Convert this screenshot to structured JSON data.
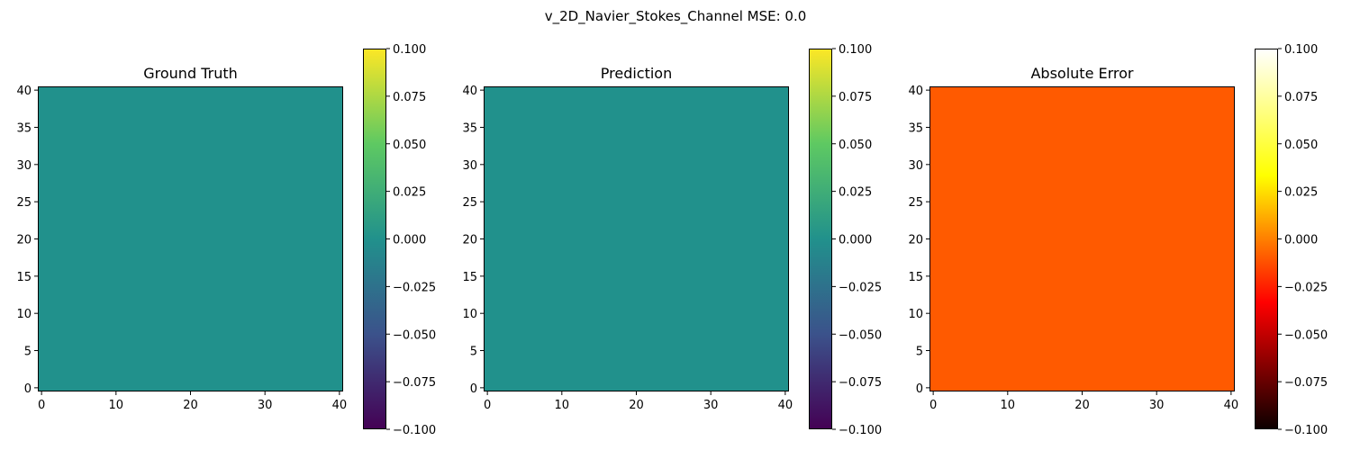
{
  "suptitle": "v_2D_Navier_Stokes_Channel MSE: 0.0",
  "chart_data": [
    {
      "type": "heatmap",
      "title": "Ground Truth",
      "xlim": [
        -0.5,
        40.5
      ],
      "ylim": [
        -0.5,
        40.5
      ],
      "xticks": [
        "0",
        "10",
        "20",
        "30",
        "40"
      ],
      "yticks": [
        "0",
        "5",
        "10",
        "15",
        "20",
        "25",
        "30",
        "35",
        "40"
      ],
      "field_value": 0.0,
      "fill_color": "#21918c",
      "colormap": "viridis",
      "colorbar": {
        "vmin": -0.1,
        "vmax": 0.1,
        "ticks": [
          "0.100",
          "0.075",
          "0.050",
          "0.025",
          "0.000",
          "−0.025",
          "−0.050",
          "−0.075",
          "−0.100"
        ],
        "stops": [
          "#440154",
          "#3b528b",
          "#21918c",
          "#5ec962",
          "#fde725"
        ]
      }
    },
    {
      "type": "heatmap",
      "title": "Prediction",
      "xlim": [
        -0.5,
        40.5
      ],
      "ylim": [
        -0.5,
        40.5
      ],
      "xticks": [
        "0",
        "10",
        "20",
        "30",
        "40"
      ],
      "yticks": [
        "0",
        "5",
        "10",
        "15",
        "20",
        "25",
        "30",
        "35",
        "40"
      ],
      "field_value": 0.0,
      "fill_color": "#21918c",
      "colormap": "viridis",
      "colorbar": {
        "vmin": -0.1,
        "vmax": 0.1,
        "ticks": [
          "0.100",
          "0.075",
          "0.050",
          "0.025",
          "0.000",
          "−0.025",
          "−0.050",
          "−0.075",
          "−0.100"
        ],
        "stops": [
          "#440154",
          "#3b528b",
          "#21918c",
          "#5ec962",
          "#fde725"
        ]
      }
    },
    {
      "type": "heatmap",
      "title": "Absolute Error",
      "xlim": [
        -0.5,
        40.5
      ],
      "ylim": [
        -0.5,
        40.5
      ],
      "xticks": [
        "0",
        "10",
        "20",
        "30",
        "40"
      ],
      "yticks": [
        "0",
        "5",
        "10",
        "15",
        "20",
        "25",
        "30",
        "35",
        "40"
      ],
      "field_value": 0.0,
      "fill_color": "#ff5a00",
      "colormap": "hot",
      "colorbar": {
        "vmin": -0.1,
        "vmax": 0.1,
        "ticks": [
          "0.100",
          "0.075",
          "0.050",
          "0.025",
          "0.000",
          "−0.025",
          "−0.050",
          "−0.075",
          "−0.100"
        ],
        "stops": [
          "#0b0000",
          "#ff0000",
          "#ffff00",
          "#ffffff"
        ]
      }
    }
  ]
}
